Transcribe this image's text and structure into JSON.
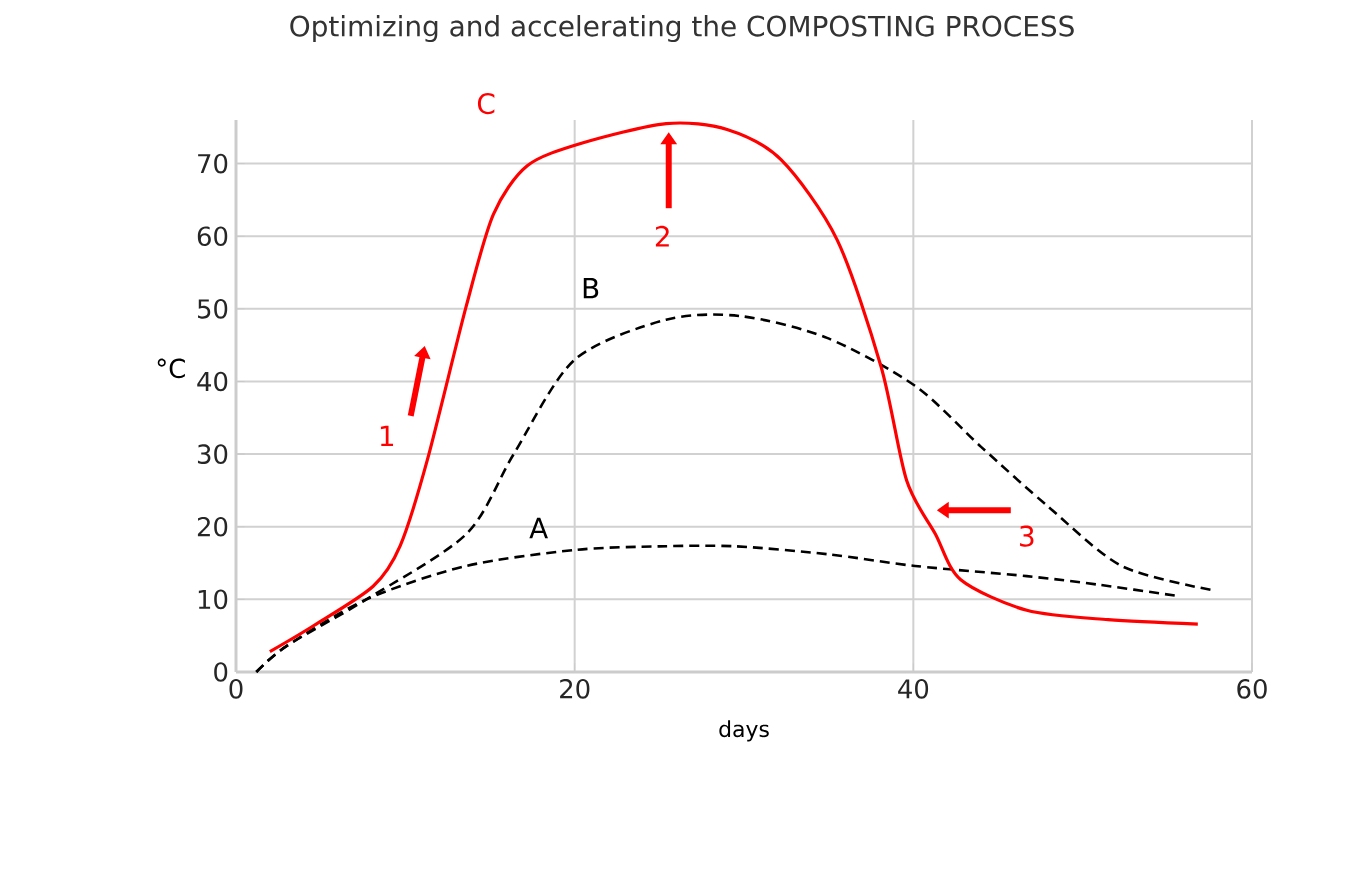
{
  "chart_data": {
    "type": "line",
    "title": "Optimizing and accelerating the COMPOSTING PROCESS",
    "xlabel": "days",
    "ylabel": "°C",
    "xlim": [
      0,
      60
    ],
    "xticks": [
      0,
      20,
      40,
      60
    ],
    "ylim": [
      0,
      76
    ],
    "yticks": [
      0,
      10,
      20,
      30,
      40,
      50,
      60,
      70
    ],
    "grid": true,
    "series": [
      {
        "name": "A",
        "color": "#000000",
        "line_style": "dashed",
        "x": [
          1.2,
          3,
          7.7,
          13.6,
          20,
          25,
          29.5,
          35,
          40.1,
          46.7,
          51,
          55.5
        ],
        "values": [
          0,
          3.6,
          10,
          14.6,
          16.8,
          17.3,
          17.3,
          16.2,
          14.6,
          13.2,
          12,
          10.5
        ]
      },
      {
        "name": "B",
        "color": "#000000",
        "line_style": "dashed",
        "x": [
          1.2,
          3,
          7.7,
          13.6,
          16.4,
          20,
          25.4,
          29.8,
          34.9,
          40.1,
          44,
          47.9,
          52.3,
          57.6
        ],
        "values": [
          0,
          3.6,
          10,
          19,
          30,
          43,
          48.5,
          49,
          46,
          39.4,
          31,
          22.9,
          14.6,
          11.3
        ]
      },
      {
        "name": "C",
        "color": "#ff0000",
        "line_style": "solid",
        "x": [
          2,
          4.6,
          8.1,
          9.7,
          11.3,
          13.6,
          15.2,
          17.2,
          20.4,
          25.4,
          29,
          32.2,
          35.5,
          38.1,
          39.6,
          41.3,
          42.8,
          46.7,
          51.5,
          56.8
        ],
        "values": [
          2.8,
          6.4,
          11.8,
          17.4,
          29.2,
          50.4,
          63,
          69.7,
          72.8,
          75.5,
          74.7,
          70.5,
          59.5,
          42,
          26.4,
          19,
          12.7,
          8.5,
          7.2,
          6.6
        ]
      }
    ],
    "annotations": [
      "1",
      "2",
      "3"
    ]
  }
}
